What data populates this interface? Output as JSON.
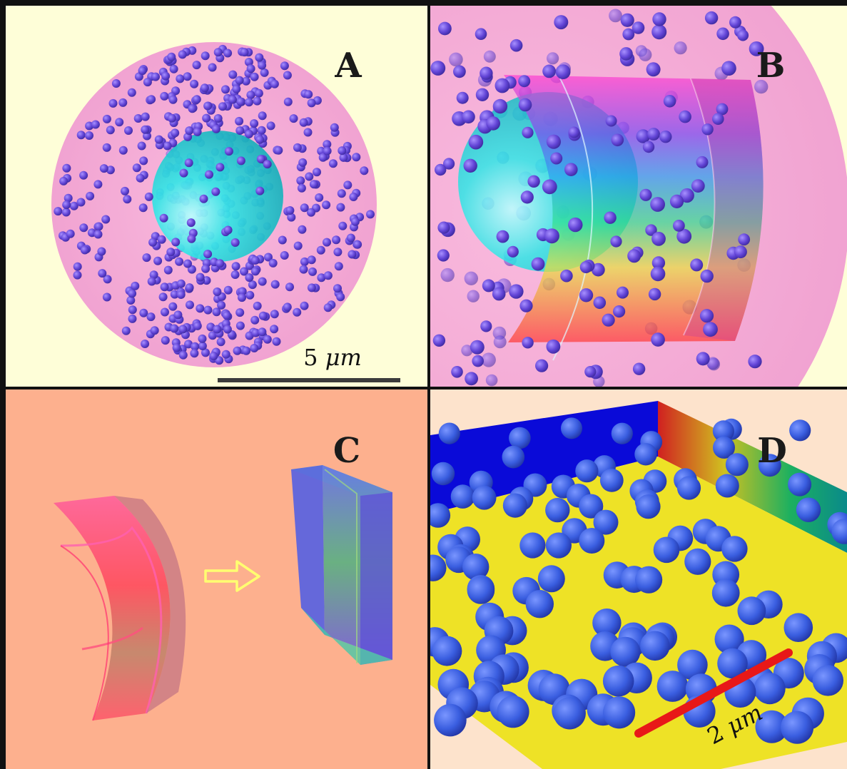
{
  "figure": {
    "panels": [
      {
        "id": "A",
        "letter": "A",
        "background": "#fefed8"
      },
      {
        "id": "B",
        "letter": "B",
        "background": "#fefed8"
      },
      {
        "id": "C",
        "letter": "C",
        "background": "#fdb08e"
      },
      {
        "id": "D",
        "letter": "D",
        "background": "#fde3cc"
      }
    ],
    "scale_bars": {
      "A": {
        "number": "5",
        "unit": "μm"
      },
      "D": {
        "number": "2",
        "unit": "μm"
      }
    }
  },
  "colors": {
    "cell": "#f6a6d8",
    "nucleus": "#22dcdc",
    "particle_small": "#6a48dc",
    "particle_large": "#3e62e0",
    "floor": "#eee226",
    "wall_back": "#0a0ad8",
    "scale_bar_a": "#3c3c3c",
    "scale_bar_d": "#e81818",
    "border": "#111111"
  },
  "icons": {
    "arrow": "outline-right-arrow-icon"
  }
}
